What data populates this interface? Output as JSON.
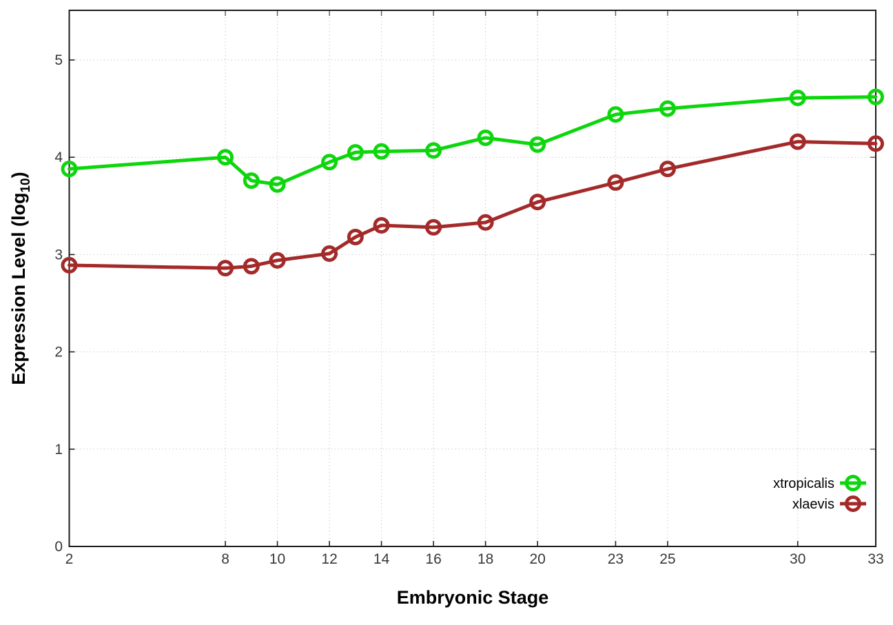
{
  "figure": {
    "background": "#ffffff",
    "xlabel": "Embryonic Stage",
    "ylabel": {
      "prefix": "Expression Level (log",
      "sub": "10",
      "suffix": ")"
    }
  },
  "legend": {
    "entries": [
      {
        "label": "xtropicalis",
        "color": "#0dd60d"
      },
      {
        "label": "xlaevis",
        "color": "#a42a2a"
      }
    ]
  },
  "chart_data": {
    "type": "line",
    "title": "",
    "xlabel": "Embryonic Stage",
    "ylabel": "Expression Level (log10)",
    "x": [
      2,
      8,
      9,
      10,
      12,
      13,
      14,
      16,
      18,
      20,
      23,
      25,
      30,
      33
    ],
    "series": [
      {
        "name": "xtropicalis",
        "color": "#0dd60d",
        "values": [
          3.88,
          4.0,
          3.76,
          3.72,
          3.95,
          4.05,
          4.06,
          4.07,
          4.2,
          4.13,
          4.44,
          4.5,
          4.61,
          4.62
        ]
      },
      {
        "name": "xlaevis",
        "color": "#a42a2a",
        "values": [
          2.89,
          2.86,
          2.88,
          2.94,
          3.01,
          3.18,
          3.3,
          3.28,
          3.33,
          3.54,
          3.74,
          3.88,
          4.16,
          4.14
        ]
      }
    ],
    "xticks": [
      2,
      8,
      10,
      12,
      14,
      16,
      18,
      20,
      23,
      25,
      30,
      33
    ],
    "yticks": [
      0,
      1,
      2,
      3,
      4,
      5
    ],
    "xlim": [
      2,
      33
    ],
    "ylim": [
      0,
      5.51
    ],
    "grid": true,
    "grid_style": "dotted",
    "grid_color": "#c9c9c9",
    "border_color": "#1a1a1a",
    "marker": "open-circle",
    "line_width": 5,
    "marker_radius": 9.5,
    "legend_position": "bottom-right"
  }
}
